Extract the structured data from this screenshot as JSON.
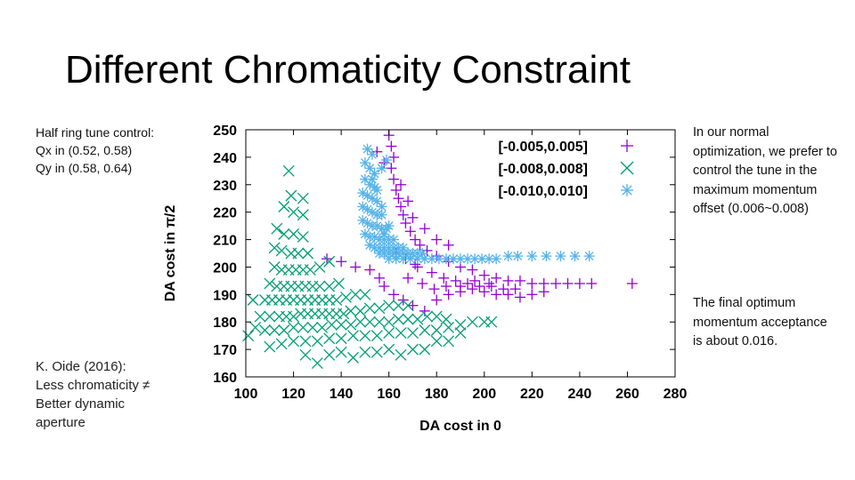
{
  "slide": {
    "title": "Different Chromaticity Constraint",
    "left_note": [
      "Half ring tune control:",
      "Qx in (0.52, 0.58)",
      "Qy in (0.58, 0.64)"
    ],
    "oide_note": [
      "K. Oide (2016):",
      "Less chromaticity ≠",
      "Better dynamic",
      "aperture"
    ],
    "right_note_1": "In our normal optimization, we prefer to control the tune in the maximum momentum offset (0.006~0.008)",
    "right_note_2": "The final optimum momentum acceptance is about 0.016."
  },
  "chart_data": {
    "type": "scatter",
    "xlabel": "DA cost in 0",
    "ylabel": "DA cost in π/2",
    "xlim": [
      100,
      280
    ],
    "ylim": [
      160,
      250
    ],
    "xticks": [
      100,
      120,
      140,
      160,
      180,
      200,
      220,
      240,
      260,
      280
    ],
    "yticks": [
      160,
      170,
      180,
      190,
      200,
      210,
      220,
      230,
      240,
      250
    ],
    "grid": false,
    "legend_position": "top-right",
    "series": [
      {
        "name": "[-0.005,0.005]",
        "marker": "plus",
        "color": "#9400d3",
        "points": [
          [
            160,
            248
          ],
          [
            161,
            244
          ],
          [
            162,
            240
          ],
          [
            161,
            236
          ],
          [
            162,
            232
          ],
          [
            163,
            228
          ],
          [
            164,
            225
          ],
          [
            165,
            222
          ],
          [
            166,
            219
          ],
          [
            167,
            216
          ],
          [
            169,
            213
          ],
          [
            171,
            210
          ],
          [
            173,
            208
          ],
          [
            176,
            206
          ],
          [
            180,
            204
          ],
          [
            185,
            202
          ],
          [
            190,
            200
          ],
          [
            195,
            199
          ],
          [
            200,
            197
          ],
          [
            205,
            196
          ],
          [
            210,
            195
          ],
          [
            215,
            195
          ],
          [
            220,
            194
          ],
          [
            225,
            194
          ],
          [
            230,
            194
          ],
          [
            235,
            194
          ],
          [
            240,
            194
          ],
          [
            245,
            194
          ],
          [
            262,
            194
          ],
          [
            134,
            203
          ],
          [
            140,
            202
          ],
          [
            146,
            200
          ],
          [
            152,
            199
          ],
          [
            156,
            196
          ],
          [
            158,
            193
          ],
          [
            162,
            190
          ],
          [
            166,
            188
          ],
          [
            170,
            186
          ],
          [
            175,
            184
          ],
          [
            180,
            188
          ],
          [
            185,
            190
          ],
          [
            190,
            191
          ],
          [
            195,
            192
          ],
          [
            200,
            191
          ],
          [
            205,
            190
          ],
          [
            210,
            190
          ],
          [
            215,
            189
          ],
          [
            220,
            190
          ],
          [
            225,
            191
          ],
          [
            155,
            242
          ],
          [
            158,
            238
          ],
          [
            165,
            230
          ],
          [
            168,
            224
          ],
          [
            170,
            218
          ],
          [
            175,
            214
          ],
          [
            180,
            210
          ],
          [
            185,
            208
          ],
          [
            172,
            200
          ],
          [
            178,
            198
          ],
          [
            183,
            196
          ],
          [
            188,
            195
          ],
          [
            193,
            194
          ],
          [
            198,
            193
          ],
          [
            203,
            193
          ],
          [
            208,
            192
          ],
          [
            213,
            192
          ],
          [
            163,
            205
          ],
          [
            167,
            203
          ],
          [
            171,
            201
          ],
          [
            168,
            196
          ],
          [
            174,
            194
          ],
          [
            179,
            192
          ],
          [
            184,
            193
          ],
          [
            190,
            193
          ],
          [
            196,
            195
          ],
          [
            202,
            194
          ]
        ]
      },
      {
        "name": "[-0.008,0.008]",
        "marker": "cross",
        "color": "#009e73",
        "points": [
          [
            118,
            235
          ],
          [
            119,
            226
          ],
          [
            124,
            225
          ],
          [
            116,
            222
          ],
          [
            120,
            220
          ],
          [
            124,
            219
          ],
          [
            113,
            214
          ],
          [
            116,
            212
          ],
          [
            120,
            212
          ],
          [
            124,
            211
          ],
          [
            112,
            207
          ],
          [
            115,
            206
          ],
          [
            119,
            205
          ],
          [
            122,
            205
          ],
          [
            126,
            205
          ],
          [
            112,
            200
          ],
          [
            115,
            199
          ],
          [
            118,
            199
          ],
          [
            121,
            199
          ],
          [
            124,
            199
          ],
          [
            127,
            199
          ],
          [
            131,
            200
          ],
          [
            135,
            202
          ],
          [
            110,
            194
          ],
          [
            113,
            193
          ],
          [
            116,
            193
          ],
          [
            119,
            193
          ],
          [
            122,
            193
          ],
          [
            125,
            193
          ],
          [
            128,
            193
          ],
          [
            131,
            193
          ],
          [
            135,
            193
          ],
          [
            139,
            194
          ],
          [
            103,
            188
          ],
          [
            108,
            188
          ],
          [
            111,
            188
          ],
          [
            114,
            188
          ],
          [
            117,
            188
          ],
          [
            120,
            188
          ],
          [
            123,
            188
          ],
          [
            126,
            188
          ],
          [
            129,
            188
          ],
          [
            132,
            188
          ],
          [
            135,
            188
          ],
          [
            138,
            188
          ],
          [
            142,
            189
          ],
          [
            146,
            190
          ],
          [
            150,
            190
          ],
          [
            106,
            182
          ],
          [
            110,
            182
          ],
          [
            114,
            182
          ],
          [
            117,
            182
          ],
          [
            120,
            182
          ],
          [
            123,
            183
          ],
          [
            126,
            183
          ],
          [
            129,
            183
          ],
          [
            132,
            183
          ],
          [
            135,
            183
          ],
          [
            138,
            183
          ],
          [
            141,
            183
          ],
          [
            144,
            184
          ],
          [
            148,
            184
          ],
          [
            152,
            185
          ],
          [
            156,
            185
          ],
          [
            160,
            186
          ],
          [
            164,
            186
          ],
          [
            168,
            186
          ],
          [
            101,
            175
          ],
          [
            104,
            178
          ],
          [
            108,
            177
          ],
          [
            112,
            177
          ],
          [
            116,
            177
          ],
          [
            120,
            178
          ],
          [
            124,
            178
          ],
          [
            128,
            178
          ],
          [
            132,
            178
          ],
          [
            136,
            179
          ],
          [
            140,
            179
          ],
          [
            144,
            179
          ],
          [
            148,
            180
          ],
          [
            152,
            180
          ],
          [
            156,
            180
          ],
          [
            160,
            180
          ],
          [
            164,
            181
          ],
          [
            168,
            181
          ],
          [
            172,
            181
          ],
          [
            176,
            182
          ],
          [
            180,
            182
          ],
          [
            184,
            181
          ],
          [
            110,
            171
          ],
          [
            115,
            172
          ],
          [
            120,
            173
          ],
          [
            125,
            173
          ],
          [
            130,
            173
          ],
          [
            135,
            174
          ],
          [
            140,
            174
          ],
          [
            145,
            175
          ],
          [
            150,
            175
          ],
          [
            155,
            175
          ],
          [
            160,
            176
          ],
          [
            165,
            176
          ],
          [
            170,
            176
          ],
          [
            175,
            177
          ],
          [
            180,
            177
          ],
          [
            185,
            178
          ],
          [
            190,
            179
          ],
          [
            195,
            180
          ],
          [
            200,
            180
          ],
          [
            203,
            180
          ],
          [
            125,
            168
          ],
          [
            130,
            165
          ],
          [
            135,
            168
          ],
          [
            140,
            169
          ],
          [
            145,
            167
          ],
          [
            150,
            169
          ],
          [
            155,
            169
          ],
          [
            160,
            170
          ],
          [
            165,
            168
          ],
          [
            170,
            170
          ],
          [
            175,
            170
          ],
          [
            180,
            173
          ],
          [
            185,
            173
          ],
          [
            190,
            176
          ]
        ]
      },
      {
        "name": "[-0.010,0.010]",
        "marker": "star",
        "color": "#56b4e9",
        "points": [
          [
            151,
            243
          ],
          [
            153,
            241
          ],
          [
            150,
            238
          ],
          [
            152,
            236
          ],
          [
            154,
            234
          ],
          [
            150,
            232
          ],
          [
            152,
            230
          ],
          [
            154,
            229
          ],
          [
            149,
            227
          ],
          [
            151,
            226
          ],
          [
            153,
            225
          ],
          [
            155,
            224
          ],
          [
            149,
            222
          ],
          [
            151,
            221
          ],
          [
            153,
            220
          ],
          [
            155,
            219
          ],
          [
            157,
            219
          ],
          [
            149,
            217
          ],
          [
            151,
            216
          ],
          [
            153,
            215
          ],
          [
            155,
            215
          ],
          [
            157,
            214
          ],
          [
            159,
            214
          ],
          [
            150,
            212
          ],
          [
            152,
            211
          ],
          [
            154,
            211
          ],
          [
            156,
            210
          ],
          [
            158,
            210
          ],
          [
            160,
            210
          ],
          [
            162,
            210
          ],
          [
            152,
            208
          ],
          [
            154,
            207
          ],
          [
            156,
            207
          ],
          [
            158,
            207
          ],
          [
            160,
            207
          ],
          [
            162,
            207
          ],
          [
            164,
            207
          ],
          [
            166,
            207
          ],
          [
            156,
            205
          ],
          [
            158,
            205
          ],
          [
            160,
            205
          ],
          [
            162,
            205
          ],
          [
            164,
            205
          ],
          [
            166,
            205
          ],
          [
            168,
            205
          ],
          [
            170,
            205
          ],
          [
            172,
            205
          ],
          [
            174,
            205
          ],
          [
            160,
            203
          ],
          [
            163,
            203
          ],
          [
            166,
            203
          ],
          [
            169,
            203
          ],
          [
            172,
            203
          ],
          [
            175,
            203
          ],
          [
            178,
            203
          ],
          [
            181,
            203
          ],
          [
            184,
            203
          ],
          [
            187,
            203
          ],
          [
            190,
            203
          ],
          [
            193,
            203
          ],
          [
            196,
            203
          ],
          [
            199,
            203
          ],
          [
            202,
            203
          ],
          [
            205,
            203
          ],
          [
            220,
            204
          ],
          [
            226,
            204
          ],
          [
            232,
            204
          ],
          [
            238,
            204
          ],
          [
            244,
            204
          ],
          [
            210,
            204
          ],
          [
            214,
            204
          ],
          [
            158,
            212
          ],
          [
            160,
            215
          ],
          [
            157,
            222
          ],
          [
            155,
            228
          ],
          [
            153,
            232
          ],
          [
            157,
            236
          ],
          [
            159,
            239
          ]
        ]
      }
    ]
  }
}
